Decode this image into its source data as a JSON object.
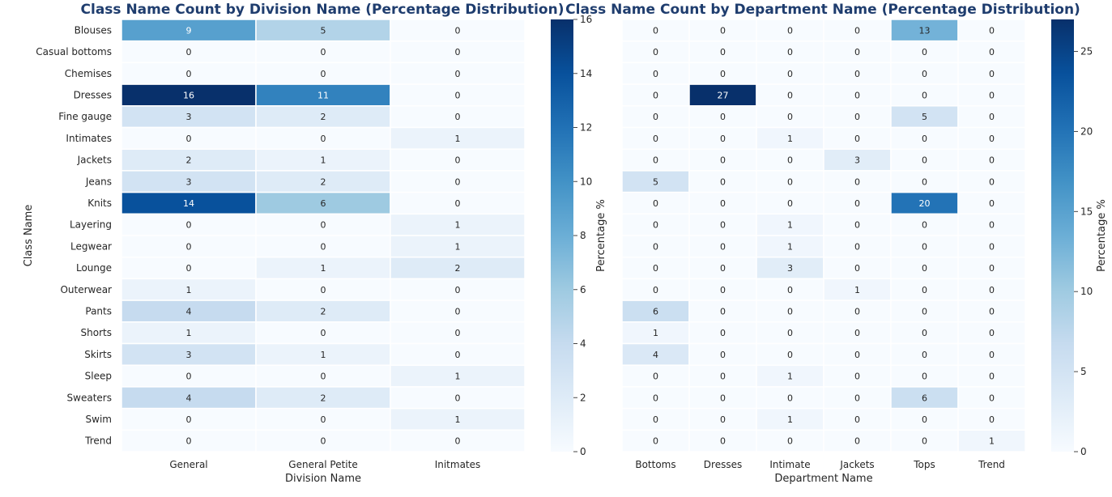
{
  "chart_data": [
    {
      "type": "heatmap",
      "title": "Class Name Count by Division Name (Percentage Distribution)",
      "xlabel": "Division Name",
      "ylabel": "Class Name",
      "colorbar_label": "Percentage %",
      "colorbar_range": [
        0,
        16
      ],
      "colorbar_ticks": [
        0,
        2,
        4,
        6,
        8,
        10,
        12,
        14,
        16
      ],
      "columns": [
        "General",
        "General Petite",
        "Initmates"
      ],
      "rows": [
        "Blouses",
        "Casual bottoms",
        "Chemises",
        "Dresses",
        "Fine gauge",
        "Intimates",
        "Jackets",
        "Jeans",
        "Knits",
        "Layering",
        "Legwear",
        "Lounge",
        "Outerwear",
        "Pants",
        "Shorts",
        "Skirts",
        "Sleep",
        "Sweaters",
        "Swim",
        "Trend"
      ],
      "values": [
        [
          9,
          5,
          0
        ],
        [
          0,
          0,
          0
        ],
        [
          0,
          0,
          0
        ],
        [
          16,
          11,
          0
        ],
        [
          3,
          2,
          0
        ],
        [
          0,
          0,
          1
        ],
        [
          2,
          1,
          0
        ],
        [
          3,
          2,
          0
        ],
        [
          14,
          6,
          0
        ],
        [
          0,
          0,
          1
        ],
        [
          0,
          0,
          1
        ],
        [
          0,
          1,
          2
        ],
        [
          1,
          0,
          0
        ],
        [
          4,
          2,
          0
        ],
        [
          1,
          0,
          0
        ],
        [
          3,
          1,
          0
        ],
        [
          0,
          0,
          1
        ],
        [
          4,
          2,
          0
        ],
        [
          0,
          0,
          1
        ],
        [
          0,
          0,
          0
        ]
      ]
    },
    {
      "type": "heatmap",
      "title": "Class Name Count by Department Name (Percentage Distribution)",
      "xlabel": "Department Name",
      "ylabel": "",
      "colorbar_label": "Percentage %",
      "colorbar_range": [
        0,
        27
      ],
      "colorbar_ticks": [
        0,
        5,
        10,
        15,
        20,
        25
      ],
      "columns": [
        "Bottoms",
        "Dresses",
        "Intimate",
        "Jackets",
        "Tops",
        "Trend"
      ],
      "rows": [
        "Blouses",
        "Casual bottoms",
        "Chemises",
        "Dresses",
        "Fine gauge",
        "Intimates",
        "Jackets",
        "Jeans",
        "Knits",
        "Layering",
        "Legwear",
        "Lounge",
        "Outerwear",
        "Pants",
        "Shorts",
        "Skirts",
        "Sleep",
        "Sweaters",
        "Swim",
        "Trend"
      ],
      "values": [
        [
          0,
          0,
          0,
          0,
          13,
          0
        ],
        [
          0,
          0,
          0,
          0,
          0,
          0
        ],
        [
          0,
          0,
          0,
          0,
          0,
          0
        ],
        [
          0,
          27,
          0,
          0,
          0,
          0
        ],
        [
          0,
          0,
          0,
          0,
          5,
          0
        ],
        [
          0,
          0,
          1,
          0,
          0,
          0
        ],
        [
          0,
          0,
          0,
          3,
          0,
          0
        ],
        [
          5,
          0,
          0,
          0,
          0,
          0
        ],
        [
          0,
          0,
          0,
          0,
          20,
          0
        ],
        [
          0,
          0,
          1,
          0,
          0,
          0
        ],
        [
          0,
          0,
          1,
          0,
          0,
          0
        ],
        [
          0,
          0,
          3,
          0,
          0,
          0
        ],
        [
          0,
          0,
          0,
          1,
          0,
          0
        ],
        [
          6,
          0,
          0,
          0,
          0,
          0
        ],
        [
          1,
          0,
          0,
          0,
          0,
          0
        ],
        [
          4,
          0,
          0,
          0,
          0,
          0
        ],
        [
          0,
          0,
          1,
          0,
          0,
          0
        ],
        [
          0,
          0,
          0,
          0,
          6,
          0
        ],
        [
          0,
          0,
          1,
          0,
          0,
          0
        ],
        [
          0,
          0,
          0,
          0,
          0,
          1
        ]
      ]
    }
  ]
}
